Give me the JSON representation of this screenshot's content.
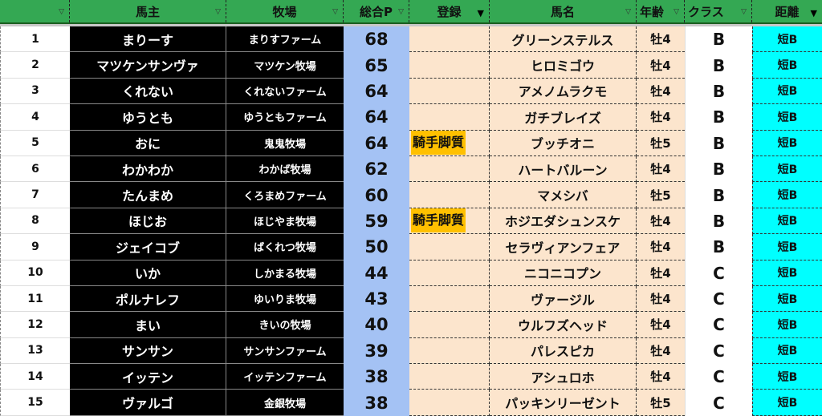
{
  "header": {
    "columns": [
      "",
      "馬主",
      "牧場",
      "総合P",
      "登録",
      "馬名",
      "年齢",
      "クラス",
      "距離"
    ],
    "filter_icons": [
      "filter-icon",
      "filter-icon",
      "filter-icon",
      "filter-icon",
      "filter-active-icon",
      "filter-icon",
      "filter-icon",
      "filter-icon",
      "filter-active-icon"
    ]
  },
  "colors": {
    "header_bg": "#34a853",
    "owner_bg": "#000000",
    "points_bg": "#a4c2f4",
    "reg_bg": "#fce5cd",
    "tag_bg": "#ffc000",
    "distance_bg": "#00ffff"
  },
  "rows": [
    {
      "n": "1",
      "owner": "まりーす",
      "farm": "まりすファーム",
      "points": "68",
      "reg": "",
      "horse": "グリーンステルス",
      "age": "牡4",
      "class": "B",
      "dist": "短B"
    },
    {
      "n": "2",
      "owner": "マツケンサンヴァ",
      "farm": "マツケン牧場",
      "points": "65",
      "reg": "",
      "horse": "ヒロミゴウ",
      "age": "牡4",
      "class": "B",
      "dist": "短B"
    },
    {
      "n": "3",
      "owner": "くれない",
      "farm": "くれないファーム",
      "points": "64",
      "reg": "",
      "horse": "アメノムラクモ",
      "age": "牡4",
      "class": "B",
      "dist": "短B"
    },
    {
      "n": "4",
      "owner": "ゆうとも",
      "farm": "ゆうともファーム",
      "points": "64",
      "reg": "",
      "horse": "ガチブレイズ",
      "age": "牡4",
      "class": "B",
      "dist": "短B"
    },
    {
      "n": "5",
      "owner": "おに",
      "farm": "鬼鬼牧場",
      "points": "64",
      "reg": "騎手脚質",
      "horse": "ブッチオニ",
      "age": "牡5",
      "class": "B",
      "dist": "短B"
    },
    {
      "n": "6",
      "owner": "わかわか",
      "farm": "わかば牧場",
      "points": "62",
      "reg": "",
      "horse": "ハートバルーン",
      "age": "牡4",
      "class": "B",
      "dist": "短B"
    },
    {
      "n": "7",
      "owner": "たんまめ",
      "farm": "くろまめファーム",
      "points": "60",
      "reg": "",
      "horse": "マメシバ",
      "age": "牡5",
      "class": "B",
      "dist": "短B"
    },
    {
      "n": "8",
      "owner": "ほじお",
      "farm": "ほじやま牧場",
      "points": "59",
      "reg": "騎手脚質",
      "horse": "ホジエダシュンスケ",
      "age": "牡4",
      "class": "B",
      "dist": "短B"
    },
    {
      "n": "9",
      "owner": "ジェイコブ",
      "farm": "ばくれつ牧場",
      "points": "50",
      "reg": "",
      "horse": "セラヴィアンフェア",
      "age": "牡4",
      "class": "B",
      "dist": "短B"
    },
    {
      "n": "10",
      "owner": "いか",
      "farm": "しかまる牧場",
      "points": "44",
      "reg": "",
      "horse": "ニコニコプン",
      "age": "牡4",
      "class": "C",
      "dist": "短B"
    },
    {
      "n": "11",
      "owner": "ポルナレフ",
      "farm": "ゆいりま牧場",
      "points": "43",
      "reg": "",
      "horse": "ヴァージル",
      "age": "牡4",
      "class": "C",
      "dist": "短B"
    },
    {
      "n": "12",
      "owner": "まい",
      "farm": "きいの牧場",
      "points": "40",
      "reg": "",
      "horse": "ウルフズヘッド",
      "age": "牡4",
      "class": "C",
      "dist": "短B"
    },
    {
      "n": "13",
      "owner": "サンサン",
      "farm": "サンサンファーム",
      "points": "39",
      "reg": "",
      "horse": "パレスピカ",
      "age": "牡4",
      "class": "C",
      "dist": "短B"
    },
    {
      "n": "14",
      "owner": "イッテン",
      "farm": "イッテンファーム",
      "points": "38",
      "reg": "",
      "horse": "アシュロホ",
      "age": "牡4",
      "class": "C",
      "dist": "短B"
    },
    {
      "n": "15",
      "owner": "ヴァルゴ",
      "farm": "金銀牧場",
      "points": "38",
      "reg": "",
      "horse": "パッキンリーゼント",
      "age": "牡5",
      "class": "C",
      "dist": "短B"
    }
  ]
}
